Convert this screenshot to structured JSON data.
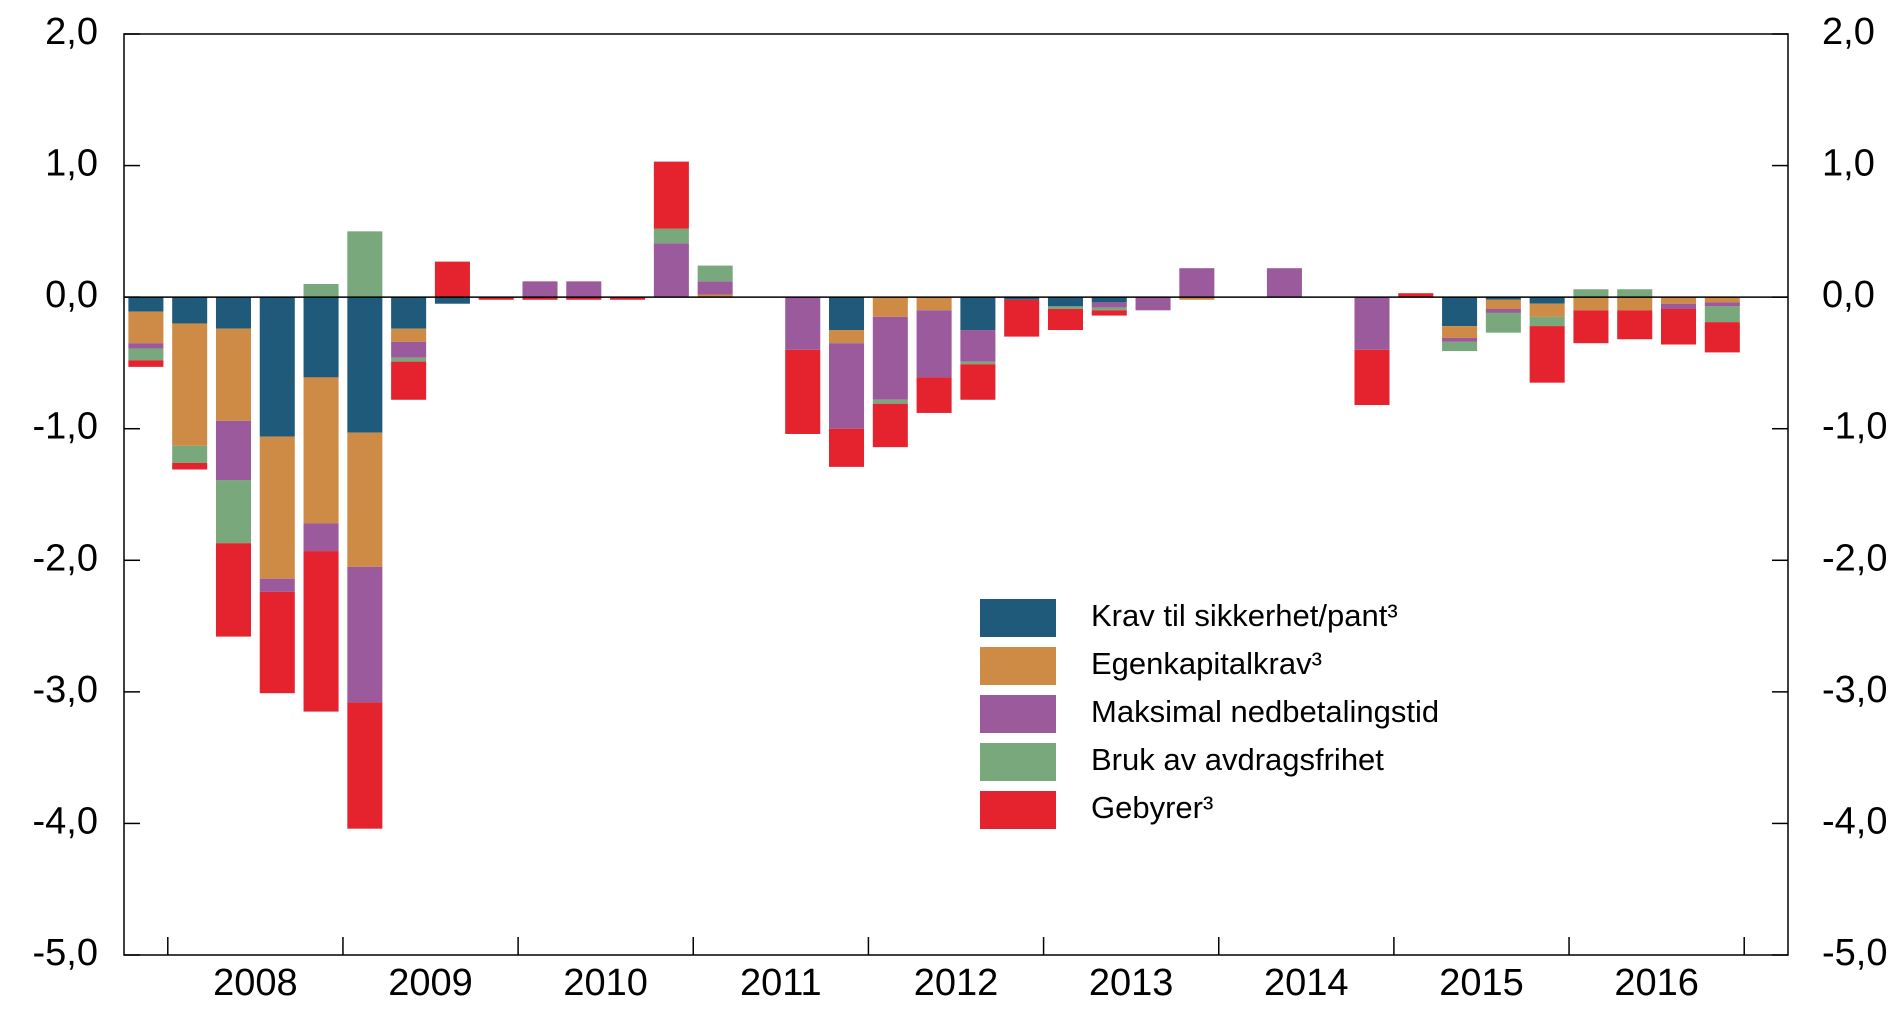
{
  "chart_data": {
    "type": "stacked-bar",
    "categories": [
      null,
      null,
      "2008",
      null,
      null,
      null,
      "2009",
      null,
      null,
      null,
      "2010",
      null,
      null,
      null,
      "2011",
      null,
      null,
      null,
      "2012",
      null,
      null,
      null,
      "2013",
      null,
      null,
      null,
      "2014",
      null,
      null,
      null,
      "2015",
      null,
      null,
      null,
      "2016",
      null,
      null
    ],
    "series": [
      {
        "name": "Krav til sikkerhet/pant³",
        "color": "#1f5a7a",
        "values": [
          -0.11,
          -0.2,
          -0.24,
          -1.06,
          -0.61,
          -1.03,
          -0.24,
          -0.05,
          0,
          0,
          0,
          0,
          0,
          0,
          0,
          0,
          -0.25,
          0,
          0,
          -0.25,
          -0.02,
          -0.07,
          -0.04,
          0,
          0,
          0,
          0,
          0,
          0,
          0,
          -0.22,
          -0.02,
          -0.05,
          0,
          0,
          0,
          0
        ]
      },
      {
        "name": "Egenkapitalkrav³",
        "color": "#cd8b45",
        "values": [
          -0.24,
          -0.93,
          -0.7,
          -1.08,
          -1.11,
          -1.02,
          -0.1,
          0,
          0,
          0,
          0,
          0,
          0,
          0.02,
          0,
          0,
          -0.1,
          -0.15,
          -0.1,
          0,
          0,
          0,
          0,
          0,
          -0.02,
          0,
          0,
          0,
          0,
          0,
          -0.09,
          -0.07,
          -0.1,
          -0.1,
          -0.1,
          -0.05,
          -0.04
        ]
      },
      {
        "name": "Maksimal nedbetalingstid",
        "color": "#9b5a9b",
        "values": [
          -0.04,
          0,
          -0.45,
          -0.1,
          -0.21,
          -1.03,
          -0.12,
          0,
          0,
          0.12,
          0.12,
          0,
          0.41,
          0.1,
          0,
          -0.4,
          -0.65,
          -0.63,
          -0.51,
          -0.24,
          0,
          0,
          -0.04,
          -0.1,
          0.22,
          0,
          0.22,
          0,
          -0.4,
          0,
          -0.03,
          -0.03,
          0,
          0,
          0,
          -0.04,
          -0.03
        ]
      },
      {
        "name": "Bruk av avdragsfrihet",
        "color": "#78a87c",
        "values": [
          -0.09,
          -0.13,
          -0.48,
          0,
          0.1,
          0.5,
          -0.03,
          0,
          0,
          0,
          0,
          0,
          0.11,
          0.12,
          0,
          0,
          0,
          -0.03,
          0,
          -0.02,
          0,
          -0.02,
          -0.02,
          0,
          0,
          0,
          0,
          0,
          0,
          0,
          -0.07,
          -0.15,
          -0.07,
          0.06,
          0.06,
          0,
          -0.12
        ]
      },
      {
        "name": "Gebyrer³",
        "color": "#e4232e",
        "values": [
          -0.05,
          -0.05,
          -0.71,
          -0.77,
          -1.22,
          -0.96,
          -0.29,
          0.27,
          -0.02,
          -0.02,
          -0.02,
          -0.02,
          0.51,
          0,
          0,
          -0.64,
          -0.29,
          -0.33,
          -0.27,
          -0.27,
          -0.28,
          -0.16,
          -0.04,
          0,
          0,
          0,
          0,
          0,
          -0.42,
          0.03,
          0,
          0,
          -0.43,
          -0.25,
          -0.22,
          -0.27,
          -0.23
        ]
      }
    ],
    "ylim": [
      -5,
      2
    ],
    "yticks": [
      {
        "value": -5,
        "label": "-5,0"
      },
      {
        "value": -4,
        "label": "-4,0"
      },
      {
        "value": -3,
        "label": "-3,0"
      },
      {
        "value": -2,
        "label": "-2,0"
      },
      {
        "value": -1,
        "label": "-1,0"
      },
      {
        "value": 0,
        "label": "0,0"
      },
      {
        "value": 1,
        "label": "1,0"
      },
      {
        "value": 2,
        "label": "2,0"
      }
    ],
    "y2lim": [
      -5,
      2
    ],
    "y2ticks": [
      {
        "value": -5,
        "label": "-5,0"
      },
      {
        "value": -4,
        "label": "-4,0"
      },
      {
        "value": -3,
        "label": "-3,0"
      },
      {
        "value": -2,
        "label": "-2,0"
      },
      {
        "value": -1,
        "label": "-1,0"
      },
      {
        "value": 0,
        "label": "0,0"
      },
      {
        "value": 1,
        "label": "1,0"
      },
      {
        "value": 2,
        "label": "2,0"
      }
    ]
  }
}
